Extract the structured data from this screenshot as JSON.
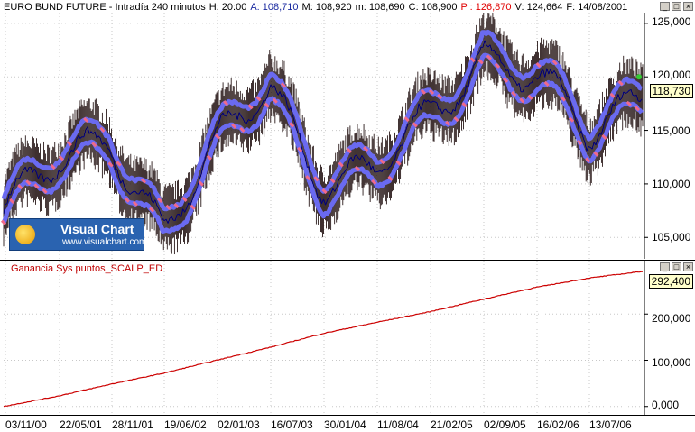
{
  "main_chart": {
    "title_parts": [
      {
        "text": "EURO BUND FUTURE - Intradía 240 minutos",
        "color": "black"
      },
      {
        "text": "H: 20:00",
        "color": "black"
      },
      {
        "text": "A: 108,710",
        "color": "blue"
      },
      {
        "text": "M: 108,920",
        "color": "black"
      },
      {
        "text": "m: 108,690",
        "color": "black"
      },
      {
        "text": "C: 108,900",
        "color": "black"
      },
      {
        "text": "P : 126,870",
        "color": "red"
      },
      {
        "text": "V: 124,664",
        "color": "black"
      },
      {
        "text": "F: 14/08/2001",
        "color": "black"
      }
    ],
    "y_ticks": [
      "125,000",
      "120,000",
      "115,000",
      "110,000",
      "105,000"
    ],
    "last_price": "118,730"
  },
  "gain_chart": {
    "title": "Ganancia Sys puntos_SCALP_ED",
    "y_ticks": [
      "200,000",
      "100,000",
      "0,000"
    ],
    "last_value": "292,400"
  },
  "x_axis": {
    "dates": [
      "03/11/00",
      "22/05/01",
      "28/11/01",
      "19/06/02",
      "02/01/03",
      "16/07/03",
      "30/01/04",
      "11/08/04",
      "21/02/05",
      "02/09/05",
      "16/02/06",
      "13/07/06"
    ]
  },
  "logo": {
    "title": "Visual Chart",
    "url": "www.visualchart.com"
  },
  "window_controls": [
    "_",
    "□",
    "×"
  ],
  "chart_data": [
    {
      "type": "line",
      "title": "EURO BUND FUTURE - Intradía 240 minutos",
      "x": [
        "03/11/00",
        "22/05/01",
        "28/11/01",
        "19/06/02",
        "02/01/03",
        "16/07/03",
        "30/01/04",
        "11/08/04",
        "21/02/05",
        "02/09/05",
        "16/02/06",
        "13/07/06",
        "08/2006"
      ],
      "series": [
        {
          "values": [
            107.5,
            111.5,
            114.5,
            106.0,
            113.0,
            119.5,
            110.5,
            111.0,
            116.0,
            122.5,
            120.0,
            114.0,
            119.0
          ]
        }
      ],
      "ylim": [
        103,
        126
      ],
      "colors": {
        "price_bars": "#2a1a1a",
        "band_upper": "#6a6af0",
        "band_lower": "#6a6af0",
        "signals": "#f06a8a",
        "mid_line": "#000080"
      }
    },
    {
      "type": "line",
      "title": "Ganancia Sys puntos_SCALP_ED",
      "x": [
        "03/11/00",
        "22/05/01",
        "28/11/01",
        "19/06/02",
        "02/01/03",
        "16/07/03",
        "30/01/04",
        "11/08/04",
        "21/02/05",
        "02/09/05",
        "16/02/06",
        "13/07/06",
        "08/2006"
      ],
      "series": [
        {
          "values": [
            0,
            22000,
            48000,
            72000,
            100000,
            128000,
            158000,
            182000,
            205000,
            232000,
            258000,
            278000,
            292400
          ]
        }
      ],
      "ylim": [
        -20000,
        300000
      ],
      "colors": {
        "line": "#cc0000"
      }
    }
  ]
}
